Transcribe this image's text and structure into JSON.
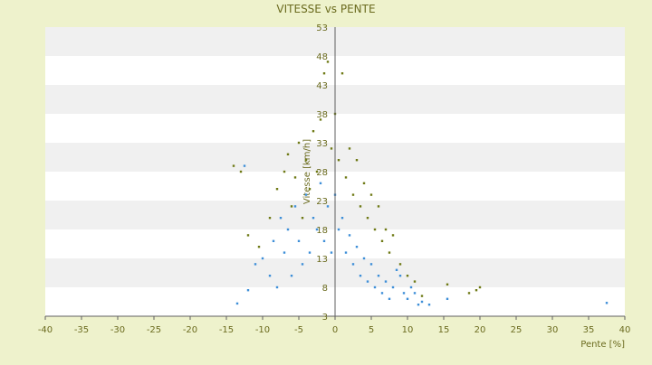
{
  "colors": {
    "background": "#eef2cc",
    "band_light": "#ffffff",
    "band_dark": "#f0f0f0",
    "axis_text": "#6b6b1f",
    "axis_line": "#606060",
    "series_a": "#3e8fd8",
    "series_b": "#6f7a16"
  },
  "chart_data": {
    "type": "scatter",
    "title": "VITESSE vs PENTE",
    "xlabel": "Pente [%]",
    "ylabel": "Vitesse [km/h]",
    "xlim": [
      -40,
      40
    ],
    "ylim": [
      3,
      53
    ],
    "xticks": [
      "-40",
      "-35",
      "-30",
      "-25",
      "-20",
      "-15",
      "-10",
      "-5",
      "0",
      "5",
      "10",
      "15",
      "20",
      "25",
      "30",
      "35",
      "40"
    ],
    "yticks": [
      "3",
      "8",
      "13",
      "18",
      "23",
      "28",
      "33",
      "38",
      "43",
      "48",
      "53"
    ],
    "grid": "alternating horizontal bands",
    "series": [
      {
        "color": "#3e8fd8",
        "points": [
          [
            -13.5,
            5.2
          ],
          [
            -12,
            7.5
          ],
          [
            -12.5,
            29
          ],
          [
            -11,
            12
          ],
          [
            -10,
            13
          ],
          [
            -9,
            10
          ],
          [
            -8.5,
            16
          ],
          [
            -8,
            8
          ],
          [
            -7.5,
            20
          ],
          [
            -7,
            14
          ],
          [
            -6.5,
            18
          ],
          [
            -6,
            10
          ],
          [
            -5.5,
            22
          ],
          [
            -5,
            16
          ],
          [
            -4.5,
            12
          ],
          [
            -4,
            24
          ],
          [
            -3.5,
            14
          ],
          [
            -3,
            20
          ],
          [
            -2.5,
            18
          ],
          [
            -2,
            26
          ],
          [
            -1.5,
            16
          ],
          [
            -1,
            22
          ],
          [
            -0.5,
            14
          ],
          [
            0,
            24
          ],
          [
            0.5,
            18
          ],
          [
            1,
            20
          ],
          [
            1.5,
            14
          ],
          [
            2,
            17
          ],
          [
            2.5,
            12
          ],
          [
            3,
            15
          ],
          [
            3.5,
            10
          ],
          [
            4,
            13
          ],
          [
            4.5,
            9
          ],
          [
            5,
            12
          ],
          [
            5.5,
            8
          ],
          [
            6,
            10
          ],
          [
            6.5,
            7
          ],
          [
            7,
            9
          ],
          [
            7.5,
            6
          ],
          [
            8,
            8
          ],
          [
            8.5,
            11
          ],
          [
            9,
            10
          ],
          [
            9.5,
            7
          ],
          [
            10,
            6
          ],
          [
            10.5,
            8
          ],
          [
            11,
            7
          ],
          [
            11.5,
            5
          ],
          [
            12,
            5.5
          ],
          [
            13,
            5
          ],
          [
            15.5,
            6
          ],
          [
            37.5,
            5.3
          ]
        ]
      },
      {
        "color": "#6f7a16",
        "points": [
          [
            -14,
            29
          ],
          [
            -13,
            28
          ],
          [
            -12,
            17
          ],
          [
            -10.5,
            15
          ],
          [
            -9,
            20
          ],
          [
            -8,
            25
          ],
          [
            -7,
            28
          ],
          [
            -6.5,
            31
          ],
          [
            -6,
            22
          ],
          [
            -5.5,
            27
          ],
          [
            -5,
            33
          ],
          [
            -4.5,
            20
          ],
          [
            -4,
            30
          ],
          [
            -3.5,
            25
          ],
          [
            -3,
            35
          ],
          [
            -2.5,
            28
          ],
          [
            -2,
            37
          ],
          [
            -1.5,
            45
          ],
          [
            -1,
            47
          ],
          [
            -0.5,
            32
          ],
          [
            0,
            38
          ],
          [
            0.5,
            30
          ],
          [
            1,
            45
          ],
          [
            1.5,
            27
          ],
          [
            2,
            32
          ],
          [
            2.5,
            24
          ],
          [
            3,
            30
          ],
          [
            3.5,
            22
          ],
          [
            4,
            26
          ],
          [
            4.5,
            20
          ],
          [
            5,
            24
          ],
          [
            5.5,
            18
          ],
          [
            6,
            22
          ],
          [
            6.5,
            16
          ],
          [
            7,
            18
          ],
          [
            7.5,
            14
          ],
          [
            8,
            17
          ],
          [
            9,
            12
          ],
          [
            10,
            10
          ],
          [
            11,
            9
          ],
          [
            12,
            6.5
          ],
          [
            15.5,
            8.5
          ],
          [
            18.5,
            7
          ],
          [
            19.5,
            7.5
          ],
          [
            20,
            8
          ]
        ]
      }
    ]
  }
}
